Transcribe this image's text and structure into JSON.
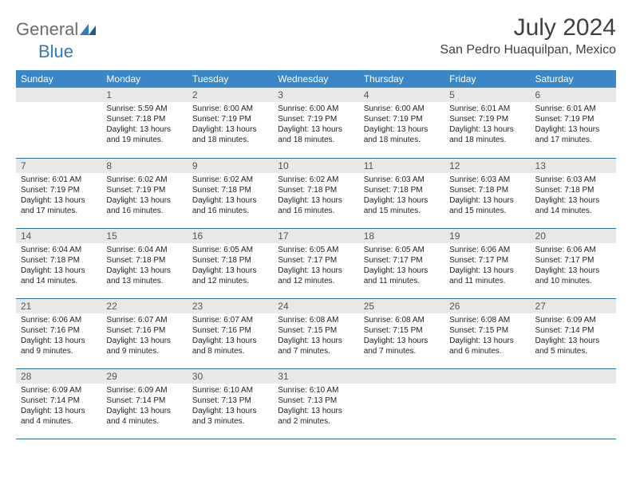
{
  "logo": {
    "textA": "General",
    "textB": "Blue"
  },
  "header": {
    "monthTitle": "July 2024",
    "location": "San Pedro Huaquilpan, Mexico"
  },
  "colors": {
    "headerBg": "#3a87c8",
    "headerText": "#ffffff",
    "dayBarBg": "#e8e8e8",
    "rowBorder": "#2a6ea8"
  },
  "dayNames": [
    "Sunday",
    "Monday",
    "Tuesday",
    "Wednesday",
    "Thursday",
    "Friday",
    "Saturday"
  ],
  "weeks": [
    [
      {
        "n": "",
        "sr": "",
        "ss": "",
        "dl": ""
      },
      {
        "n": "1",
        "sr": "Sunrise: 5:59 AM",
        "ss": "Sunset: 7:18 PM",
        "dl": "Daylight: 13 hours and 19 minutes."
      },
      {
        "n": "2",
        "sr": "Sunrise: 6:00 AM",
        "ss": "Sunset: 7:19 PM",
        "dl": "Daylight: 13 hours and 18 minutes."
      },
      {
        "n": "3",
        "sr": "Sunrise: 6:00 AM",
        "ss": "Sunset: 7:19 PM",
        "dl": "Daylight: 13 hours and 18 minutes."
      },
      {
        "n": "4",
        "sr": "Sunrise: 6:00 AM",
        "ss": "Sunset: 7:19 PM",
        "dl": "Daylight: 13 hours and 18 minutes."
      },
      {
        "n": "5",
        "sr": "Sunrise: 6:01 AM",
        "ss": "Sunset: 7:19 PM",
        "dl": "Daylight: 13 hours and 18 minutes."
      },
      {
        "n": "6",
        "sr": "Sunrise: 6:01 AM",
        "ss": "Sunset: 7:19 PM",
        "dl": "Daylight: 13 hours and 17 minutes."
      }
    ],
    [
      {
        "n": "7",
        "sr": "Sunrise: 6:01 AM",
        "ss": "Sunset: 7:19 PM",
        "dl": "Daylight: 13 hours and 17 minutes."
      },
      {
        "n": "8",
        "sr": "Sunrise: 6:02 AM",
        "ss": "Sunset: 7:19 PM",
        "dl": "Daylight: 13 hours and 16 minutes."
      },
      {
        "n": "9",
        "sr": "Sunrise: 6:02 AM",
        "ss": "Sunset: 7:18 PM",
        "dl": "Daylight: 13 hours and 16 minutes."
      },
      {
        "n": "10",
        "sr": "Sunrise: 6:02 AM",
        "ss": "Sunset: 7:18 PM",
        "dl": "Daylight: 13 hours and 16 minutes."
      },
      {
        "n": "11",
        "sr": "Sunrise: 6:03 AM",
        "ss": "Sunset: 7:18 PM",
        "dl": "Daylight: 13 hours and 15 minutes."
      },
      {
        "n": "12",
        "sr": "Sunrise: 6:03 AM",
        "ss": "Sunset: 7:18 PM",
        "dl": "Daylight: 13 hours and 15 minutes."
      },
      {
        "n": "13",
        "sr": "Sunrise: 6:03 AM",
        "ss": "Sunset: 7:18 PM",
        "dl": "Daylight: 13 hours and 14 minutes."
      }
    ],
    [
      {
        "n": "14",
        "sr": "Sunrise: 6:04 AM",
        "ss": "Sunset: 7:18 PM",
        "dl": "Daylight: 13 hours and 14 minutes."
      },
      {
        "n": "15",
        "sr": "Sunrise: 6:04 AM",
        "ss": "Sunset: 7:18 PM",
        "dl": "Daylight: 13 hours and 13 minutes."
      },
      {
        "n": "16",
        "sr": "Sunrise: 6:05 AM",
        "ss": "Sunset: 7:18 PM",
        "dl": "Daylight: 13 hours and 12 minutes."
      },
      {
        "n": "17",
        "sr": "Sunrise: 6:05 AM",
        "ss": "Sunset: 7:17 PM",
        "dl": "Daylight: 13 hours and 12 minutes."
      },
      {
        "n": "18",
        "sr": "Sunrise: 6:05 AM",
        "ss": "Sunset: 7:17 PM",
        "dl": "Daylight: 13 hours and 11 minutes."
      },
      {
        "n": "19",
        "sr": "Sunrise: 6:06 AM",
        "ss": "Sunset: 7:17 PM",
        "dl": "Daylight: 13 hours and 11 minutes."
      },
      {
        "n": "20",
        "sr": "Sunrise: 6:06 AM",
        "ss": "Sunset: 7:17 PM",
        "dl": "Daylight: 13 hours and 10 minutes."
      }
    ],
    [
      {
        "n": "21",
        "sr": "Sunrise: 6:06 AM",
        "ss": "Sunset: 7:16 PM",
        "dl": "Daylight: 13 hours and 9 minutes."
      },
      {
        "n": "22",
        "sr": "Sunrise: 6:07 AM",
        "ss": "Sunset: 7:16 PM",
        "dl": "Daylight: 13 hours and 9 minutes."
      },
      {
        "n": "23",
        "sr": "Sunrise: 6:07 AM",
        "ss": "Sunset: 7:16 PM",
        "dl": "Daylight: 13 hours and 8 minutes."
      },
      {
        "n": "24",
        "sr": "Sunrise: 6:08 AM",
        "ss": "Sunset: 7:15 PM",
        "dl": "Daylight: 13 hours and 7 minutes."
      },
      {
        "n": "25",
        "sr": "Sunrise: 6:08 AM",
        "ss": "Sunset: 7:15 PM",
        "dl": "Daylight: 13 hours and 7 minutes."
      },
      {
        "n": "26",
        "sr": "Sunrise: 6:08 AM",
        "ss": "Sunset: 7:15 PM",
        "dl": "Daylight: 13 hours and 6 minutes."
      },
      {
        "n": "27",
        "sr": "Sunrise: 6:09 AM",
        "ss": "Sunset: 7:14 PM",
        "dl": "Daylight: 13 hours and 5 minutes."
      }
    ],
    [
      {
        "n": "28",
        "sr": "Sunrise: 6:09 AM",
        "ss": "Sunset: 7:14 PM",
        "dl": "Daylight: 13 hours and 4 minutes."
      },
      {
        "n": "29",
        "sr": "Sunrise: 6:09 AM",
        "ss": "Sunset: 7:14 PM",
        "dl": "Daylight: 13 hours and 4 minutes."
      },
      {
        "n": "30",
        "sr": "Sunrise: 6:10 AM",
        "ss": "Sunset: 7:13 PM",
        "dl": "Daylight: 13 hours and 3 minutes."
      },
      {
        "n": "31",
        "sr": "Sunrise: 6:10 AM",
        "ss": "Sunset: 7:13 PM",
        "dl": "Daylight: 13 hours and 2 minutes."
      },
      {
        "n": "",
        "sr": "",
        "ss": "",
        "dl": ""
      },
      {
        "n": "",
        "sr": "",
        "ss": "",
        "dl": ""
      },
      {
        "n": "",
        "sr": "",
        "ss": "",
        "dl": ""
      }
    ]
  ]
}
